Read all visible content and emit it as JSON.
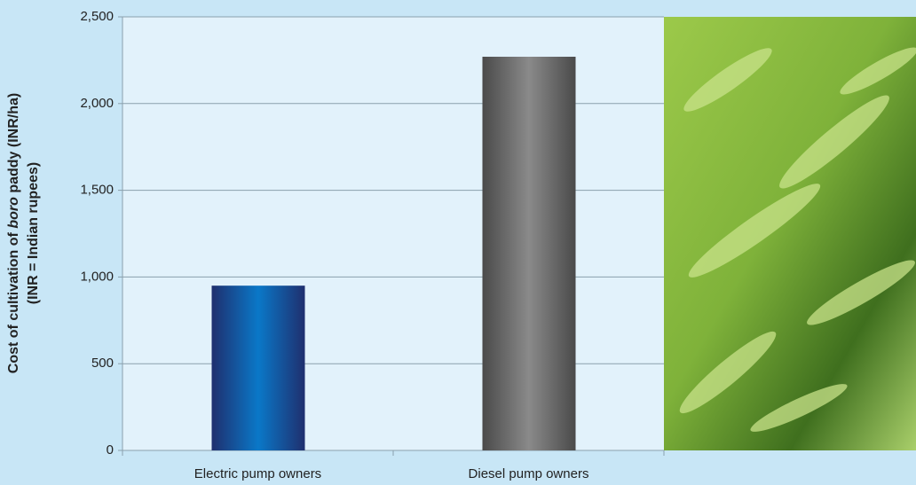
{
  "chart_data": {
    "type": "bar",
    "ylabel": {
      "line1": [
        "Cost of cultivation of ",
        "boro",
        " paddy (INR/ha)"
      ],
      "line2": "(INR = Indian rupees)"
    },
    "categories": [
      "Electric pump owners",
      "Diesel pump owners"
    ],
    "values": [
      950,
      2270
    ],
    "colors": [
      "#0a78c8",
      "#8a8a8a"
    ],
    "ylim": [
      0,
      2500
    ],
    "yticks": [
      0,
      500,
      {
        "value": 1000,
        "label": "1,000"
      },
      {
        "value": 1500,
        "label": "1,500"
      },
      {
        "value": 2000,
        "label": "2,000"
      },
      {
        "value": 2500,
        "label": "2,500"
      }
    ],
    "grid": true
  }
}
